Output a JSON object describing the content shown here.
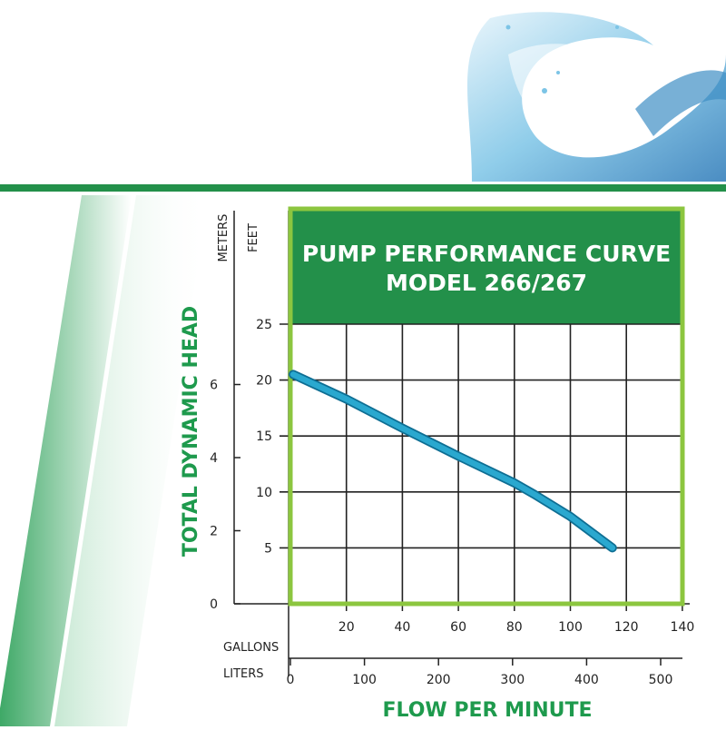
{
  "colors": {
    "green_dark": "#1e9a4d",
    "green_band": "#23904a",
    "frame_lime": "#8cc63f",
    "curve_blue": "#2aa8cf",
    "curve_outline": "#0e6e93",
    "axis_label_green": "#1e9a4d",
    "grid": "#222222"
  },
  "chart_data": {
    "type": "line",
    "title": "PUMP PERFORMANCE CURVE",
    "subtitle": "MODEL 266/267",
    "ylabel": "TOTAL DYNAMIC HEAD",
    "xlabel": "FLOW PER MINUTE",
    "y_units": [
      "METERS",
      "FEET"
    ],
    "x_units": [
      "GALLONS",
      "LITERS"
    ],
    "x_gallons_ticks": [
      "20",
      "40",
      "60",
      "80",
      "100",
      "120",
      "140"
    ],
    "x_liters_ticks": [
      "0",
      "100",
      "200",
      "300",
      "400",
      "500"
    ],
    "y_feet_ticks": [
      "5",
      "10",
      "15",
      "20",
      "25"
    ],
    "y_meters_ticks": [
      "0",
      "2",
      "4",
      "6"
    ],
    "xlim_gallons": [
      0,
      140
    ],
    "ylim_feet": [
      0,
      25
    ],
    "grid": true,
    "series": [
      {
        "x": [
          1,
          20,
          40,
          60,
          80,
          87,
          100,
          115
        ],
        "y": [
          20.5,
          18.3,
          15.7,
          13.2,
          10.8,
          9.8,
          7.8,
          5.0
        ]
      }
    ]
  }
}
